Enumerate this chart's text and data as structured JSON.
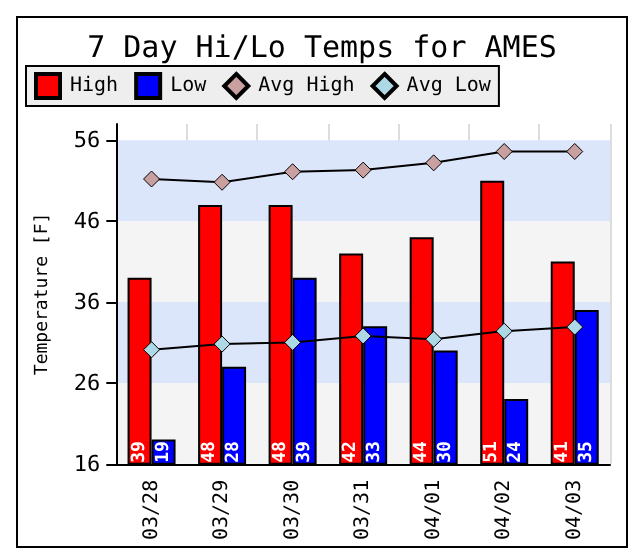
{
  "chart_data": {
    "type": "bar",
    "title": "7 Day Hi/Lo Temps for AMES",
    "ylabel": "Temperature [F]",
    "categories": [
      "03/28",
      "03/29",
      "03/30",
      "03/31",
      "04/01",
      "04/02",
      "04/03"
    ],
    "series": [
      {
        "name": "High",
        "color": "#ff0000",
        "values": [
          39,
          48,
          48,
          42,
          44,
          51,
          41
        ],
        "value_labels": [
          "39",
          "48",
          "48",
          "42",
          "44",
          "51",
          "41"
        ]
      },
      {
        "name": "Low",
        "color": "#0000ff",
        "values": [
          19,
          28,
          39,
          33,
          30,
          24,
          35
        ],
        "value_labels": [
          "19",
          "28",
          "39",
          "33",
          "30",
          "24",
          "35"
        ]
      },
      {
        "name": "Avg High",
        "type": "line",
        "color": "#c8a0a0",
        "values": [
          51.2,
          50.8,
          52.1,
          52.3,
          53.2,
          54.6,
          54.6
        ]
      },
      {
        "name": "Avg Low",
        "type": "line",
        "color": "#add8e6",
        "values": [
          30.1,
          30.8,
          31.0,
          31.8,
          31.4,
          32.4,
          32.9
        ]
      }
    ],
    "ylim": [
      16,
      58
    ],
    "yticks": [
      16,
      26,
      36,
      46,
      56
    ],
    "bands": [
      {
        "axis": "y",
        "from": 16,
        "to": 26,
        "color": "#f4f4f4"
      },
      {
        "axis": "y",
        "from": 26,
        "to": 36,
        "color": "#dce6fa"
      },
      {
        "axis": "y",
        "from": 36,
        "to": 46,
        "color": "#f4f4f4"
      },
      {
        "axis": "y",
        "from": 46,
        "to": 56,
        "color": "#dce6fa"
      }
    ],
    "grid": "x",
    "legend": "top",
    "marker": "diamond"
  }
}
